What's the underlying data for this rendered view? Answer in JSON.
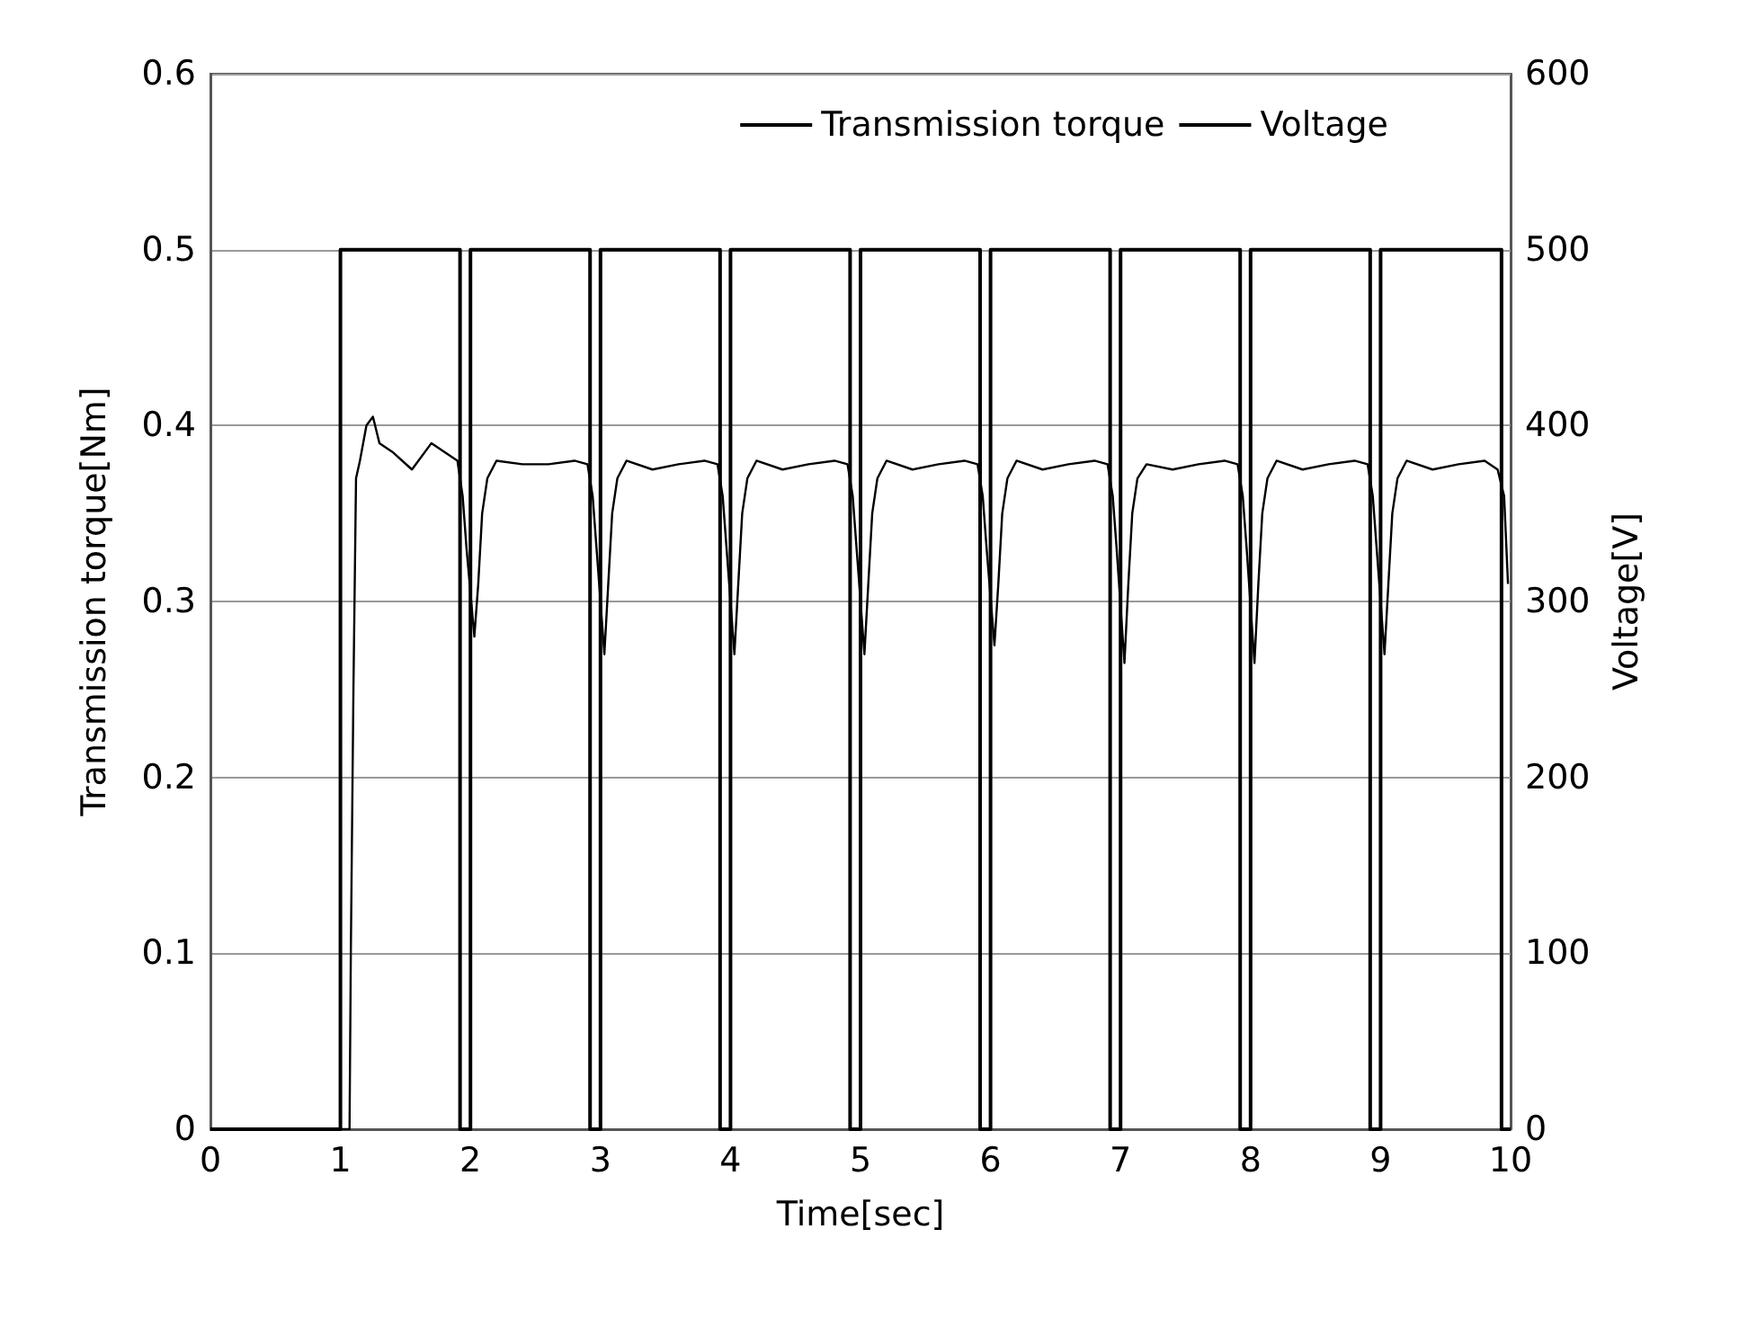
{
  "chart_data": {
    "type": "line",
    "xlabel": "Time[sec]",
    "ylabel": "Transmission torque[Nm]",
    "y2label": "Voltage[V]",
    "xlim": [
      0,
      10
    ],
    "xticks": [
      0,
      1,
      2,
      3,
      4,
      5,
      6,
      7,
      8,
      9,
      10
    ],
    "ylim": [
      0,
      0.6
    ],
    "yticks": [
      0,
      0.1,
      0.2,
      0.3,
      0.4,
      0.5,
      0.6
    ],
    "y2lim": [
      0,
      600
    ],
    "y2ticks": [
      0,
      100,
      200,
      300,
      400,
      500,
      600
    ],
    "grid": "y",
    "legend": "top right",
    "series": [
      {
        "name": "Transmission torque",
        "color": "#000000",
        "x": [
          0,
          1.07,
          1.08,
          1.1,
          1.12,
          1.15,
          1.2,
          1.25,
          1.3,
          1.4,
          1.55,
          1.7,
          1.8,
          1.9,
          1.94,
          1.97,
          2.03,
          2.06,
          2.09,
          2.13,
          2.2,
          2.4,
          2.6,
          2.8,
          2.9,
          2.94,
          2.97,
          3.03,
          3.06,
          3.09,
          3.13,
          3.2,
          3.4,
          3.6,
          3.8,
          3.9,
          3.94,
          3.97,
          4.03,
          4.06,
          4.09,
          4.13,
          4.2,
          4.4,
          4.6,
          4.8,
          4.9,
          4.94,
          4.97,
          5.03,
          5.06,
          5.09,
          5.13,
          5.2,
          5.4,
          5.6,
          5.8,
          5.9,
          5.94,
          5.97,
          6.03,
          6.06,
          6.09,
          6.13,
          6.2,
          6.4,
          6.6,
          6.8,
          6.9,
          6.94,
          6.97,
          7.03,
          7.06,
          7.09,
          7.13,
          7.2,
          7.4,
          7.6,
          7.8,
          7.9,
          7.94,
          7.97,
          8.03,
          8.06,
          8.09,
          8.13,
          8.2,
          8.4,
          8.6,
          8.8,
          8.9,
          8.94,
          8.97,
          9.03,
          9.06,
          9.09,
          9.13,
          9.2,
          9.4,
          9.6,
          9.8,
          9.9,
          9.95,
          9.98
        ],
        "values": [
          0,
          0,
          0.1,
          0.25,
          0.37,
          0.38,
          0.4,
          0.405,
          0.39,
          0.385,
          0.375,
          0.39,
          0.385,
          0.38,
          0.36,
          0.33,
          0.28,
          0.31,
          0.35,
          0.37,
          0.38,
          0.378,
          0.378,
          0.38,
          0.378,
          0.36,
          0.33,
          0.27,
          0.31,
          0.35,
          0.37,
          0.38,
          0.375,
          0.378,
          0.38,
          0.378,
          0.36,
          0.33,
          0.27,
          0.31,
          0.35,
          0.37,
          0.38,
          0.375,
          0.378,
          0.38,
          0.378,
          0.36,
          0.33,
          0.27,
          0.31,
          0.35,
          0.37,
          0.38,
          0.375,
          0.378,
          0.38,
          0.378,
          0.36,
          0.33,
          0.275,
          0.31,
          0.35,
          0.37,
          0.38,
          0.375,
          0.378,
          0.38,
          0.378,
          0.36,
          0.33,
          0.265,
          0.31,
          0.35,
          0.37,
          0.378,
          0.375,
          0.378,
          0.38,
          0.378,
          0.36,
          0.33,
          0.265,
          0.31,
          0.35,
          0.37,
          0.38,
          0.375,
          0.378,
          0.38,
          0.378,
          0.36,
          0.33,
          0.27,
          0.31,
          0.35,
          0.37,
          0.38,
          0.375,
          0.378,
          0.38,
          0.375,
          0.36,
          0.31
        ]
      },
      {
        "name": "Voltage",
        "color": "#000000",
        "axis": "y2",
        "x": [
          0,
          1,
          1,
          1.92,
          1.92,
          2,
          2,
          2.92,
          2.92,
          3,
          3,
          3.92,
          3.92,
          4,
          4,
          4.92,
          4.92,
          5,
          5,
          5.92,
          5.92,
          6,
          6,
          6.92,
          6.92,
          7,
          7,
          7.92,
          7.92,
          8,
          8,
          8.92,
          8.92,
          9,
          9,
          9.93,
          9.93,
          10
        ],
        "values": [
          0,
          0,
          500,
          500,
          0,
          0,
          500,
          500,
          0,
          0,
          500,
          500,
          0,
          0,
          500,
          500,
          0,
          0,
          500,
          500,
          0,
          0,
          500,
          500,
          0,
          0,
          500,
          500,
          0,
          0,
          500,
          500,
          0,
          0,
          500,
          500,
          0,
          0
        ]
      }
    ]
  }
}
